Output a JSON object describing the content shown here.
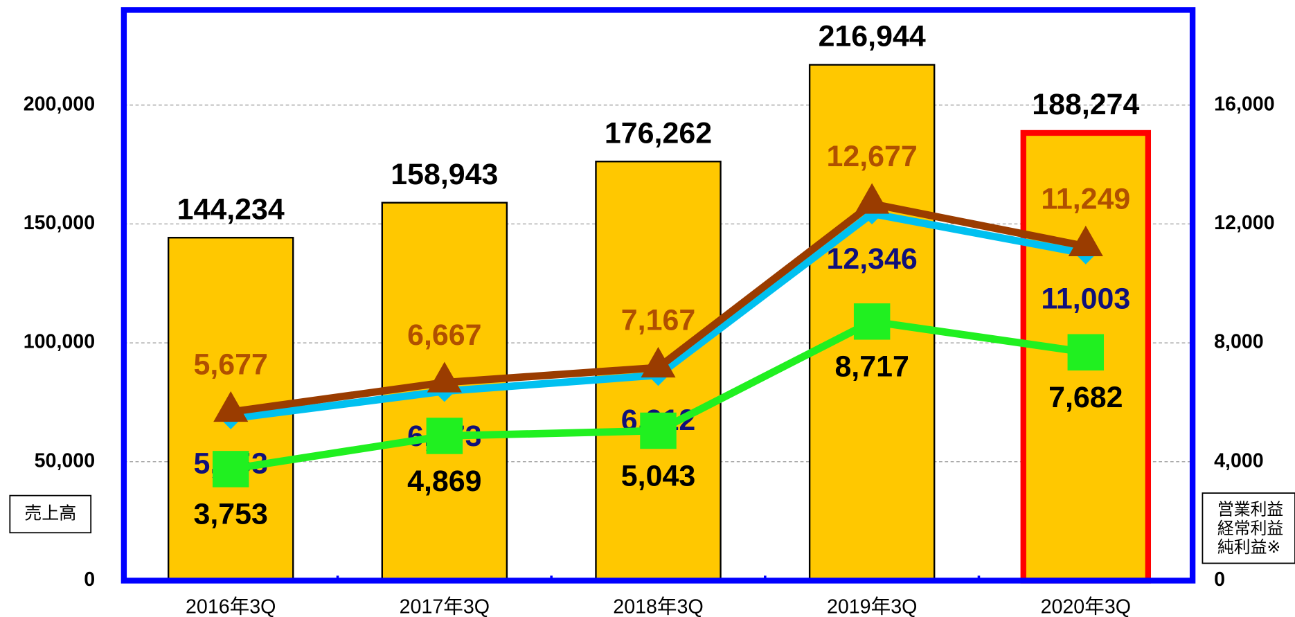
{
  "chart_data": {
    "type": "bar_line",
    "categories": [
      "2016年3Q",
      "2017年3Q",
      "2018年3Q",
      "2019年3Q",
      "2020年3Q"
    ],
    "y_label": "売上高",
    "y2_label": [
      "営業利益",
      "経常利益",
      "純利益※"
    ],
    "ylim": [
      0,
      240000
    ],
    "yticks": [
      0,
      {
        "value": 50000,
        "label": "50,000"
      },
      {
        "value": 100000,
        "label": "100,000"
      },
      {
        "value": 150000,
        "label": "150,000"
      },
      {
        "value": 200000,
        "label": "200,000"
      }
    ],
    "y2lim": [
      0,
      19200
    ],
    "y2ticks": [
      0,
      {
        "value": 4000,
        "label": "4,000"
      },
      {
        "value": 8000,
        "label": "8,000"
      },
      {
        "value": 12000,
        "label": "12,000"
      },
      {
        "value": 16000,
        "label": "16,000"
      }
    ],
    "grid": true,
    "series": [
      {
        "type": "bar",
        "color": "#ffc800",
        "values": [
          144234,
          158943,
          176262,
          216944,
          188274
        ],
        "value_labels": [
          "144,234",
          "158,943",
          "176,262",
          "216,944",
          "188,274"
        ],
        "label_color": "#000000",
        "highlight": [
          4
        ],
        "highlight_color": "#ff0000"
      },
      {
        "type": "line",
        "axis": "y2",
        "color": "#00c0f0",
        "marker": "diamond",
        "values": [
          5453,
          6373,
          6912,
          12346,
          11003
        ],
        "value_labels": [
          "5,453",
          "6,373",
          "6,912",
          "12,346",
          "11,003"
        ],
        "label_color": "#10107a",
        "label_pos": "below"
      },
      {
        "type": "line",
        "axis": "y2",
        "color": "#9a3c00",
        "marker": "triangle",
        "values": [
          5677,
          6667,
          7167,
          12677,
          11249
        ],
        "value_labels": [
          "5,677",
          "6,667",
          "7,167",
          "12,677",
          "11,249"
        ],
        "label_color": "#b05000",
        "label_pos": "above"
      },
      {
        "type": "line",
        "axis": "y2",
        "color": "#20f020",
        "marker": "square",
        "values": [
          3753,
          4869,
          5043,
          8717,
          7682
        ],
        "value_labels": [
          "3,753",
          "4,869",
          "5,043",
          "8,717",
          "7,682"
        ],
        "label_color": "#000000",
        "label_pos": "below"
      }
    ]
  }
}
